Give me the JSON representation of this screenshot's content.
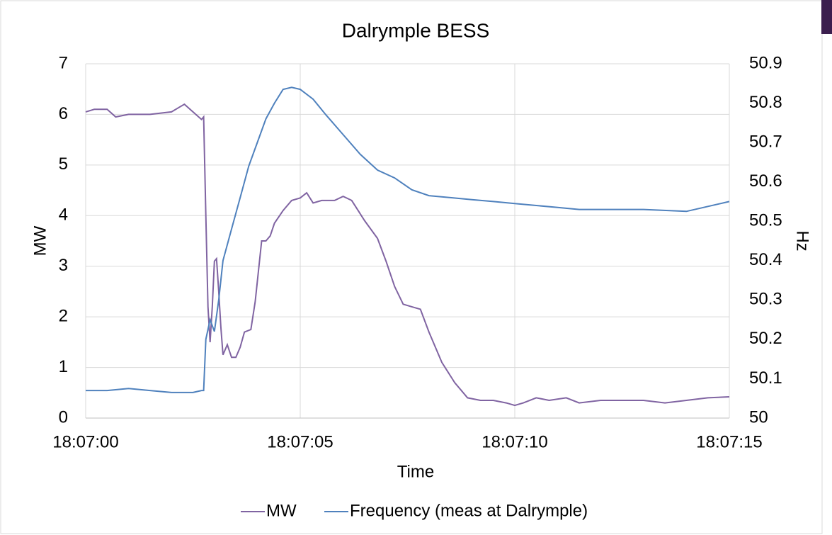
{
  "chart_data": {
    "type": "line",
    "title": "Dalrymple BESS",
    "xlabel": "Time",
    "ylabel": "MW",
    "y2label": "Hz",
    "xlim": [
      0,
      15
    ],
    "xticks": [
      {
        "value": 0,
        "label": "18:07:00"
      },
      {
        "value": 5,
        "label": "18:07:05"
      },
      {
        "value": 10,
        "label": "18:07:10"
      },
      {
        "value": 15,
        "label": "18:07:15"
      }
    ],
    "ylim": [
      0,
      7
    ],
    "yticks": [
      0,
      1,
      2,
      3,
      4,
      5,
      6,
      7
    ],
    "y2lim": [
      50,
      50.9
    ],
    "y2ticks": [
      50,
      50.1,
      50.2,
      50.3,
      50.4,
      50.5,
      50.6,
      50.7,
      50.8,
      50.9
    ],
    "grid": true,
    "legend": "bottom",
    "series": [
      {
        "name": "MW",
        "color": "#8064a2",
        "x": [
          0,
          0.2,
          0.5,
          0.7,
          1.0,
          1.5,
          2.0,
          2.2,
          2.3,
          2.5,
          2.7,
          2.75,
          2.8,
          2.85,
          2.9,
          2.95,
          3.0,
          3.05,
          3.1,
          3.15,
          3.2,
          3.3,
          3.4,
          3.5,
          3.6,
          3.7,
          3.85,
          3.95,
          4.1,
          4.2,
          4.3,
          4.4,
          4.6,
          4.8,
          5.0,
          5.15,
          5.3,
          5.5,
          5.8,
          6.0,
          6.2,
          6.5,
          6.8,
          7.0,
          7.2,
          7.4,
          7.6,
          7.8,
          8.0,
          8.3,
          8.6,
          8.9,
          9.2,
          9.5,
          9.8,
          10.0,
          10.2,
          10.5,
          10.8,
          11.2,
          11.5,
          12,
          12.5,
          13,
          13.5,
          14,
          14.5,
          15
        ],
        "values": [
          6.05,
          6.1,
          6.1,
          5.95,
          6.0,
          6.0,
          6.05,
          6.15,
          6.2,
          6.05,
          5.9,
          5.95,
          4.0,
          2.2,
          1.5,
          2.2,
          3.1,
          3.15,
          2.5,
          1.8,
          1.25,
          1.45,
          1.2,
          1.2,
          1.4,
          1.7,
          1.75,
          2.3,
          3.5,
          3.5,
          3.6,
          3.85,
          4.1,
          4.3,
          4.35,
          4.45,
          4.25,
          4.3,
          4.3,
          4.38,
          4.3,
          3.9,
          3.55,
          3.1,
          2.6,
          2.25,
          2.2,
          2.15,
          1.7,
          1.1,
          0.7,
          0.4,
          0.35,
          0.35,
          0.3,
          0.25,
          0.3,
          0.4,
          0.35,
          0.4,
          0.3,
          0.35,
          0.35,
          0.35,
          0.3,
          0.35,
          0.4,
          0.42
        ]
      },
      {
        "name": "Frequency (meas at Dalrymple)",
        "color": "#4f81bd",
        "axis": "y2",
        "x": [
          0,
          0.5,
          1.0,
          1.5,
          2.0,
          2.5,
          2.7,
          2.75,
          2.8,
          2.9,
          3.0,
          3.1,
          3.2,
          3.4,
          3.6,
          3.8,
          4.0,
          4.2,
          4.4,
          4.6,
          4.8,
          5.0,
          5.3,
          5.6,
          6.0,
          6.4,
          6.8,
          7.2,
          7.6,
          8.0,
          8.5,
          9.0,
          9.5,
          10.0,
          10.5,
          11,
          11.5,
          12,
          13,
          14,
          15
        ],
        "values": [
          50.07,
          50.07,
          50.075,
          50.07,
          50.065,
          50.065,
          50.07,
          50.07,
          50.2,
          50.25,
          50.22,
          50.3,
          50.4,
          50.48,
          50.56,
          50.64,
          50.7,
          50.76,
          50.8,
          50.835,
          50.84,
          50.835,
          50.81,
          50.77,
          50.72,
          50.67,
          50.63,
          50.61,
          50.58,
          50.565,
          50.56,
          50.555,
          50.55,
          50.545,
          50.54,
          50.535,
          50.53,
          50.53,
          50.53,
          50.525,
          50.55
        ]
      }
    ]
  }
}
